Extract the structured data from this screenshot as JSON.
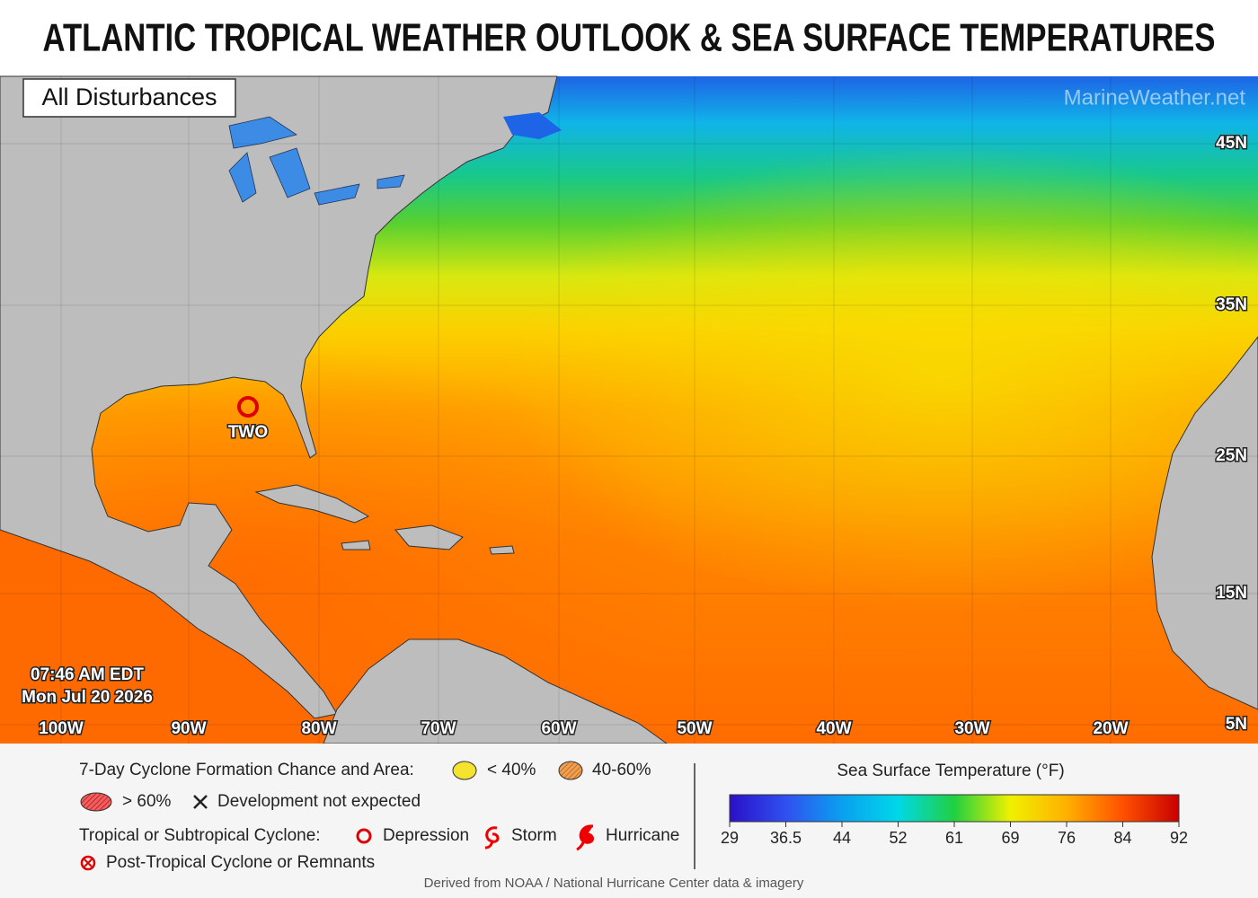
{
  "header": {
    "title": "ATLANTIC TROPICAL WEATHER OUTLOOK & SEA SURFACE TEMPERATURES"
  },
  "map": {
    "badge": "All Disturbances",
    "watermark": "MarineWeather.net",
    "latitude_labels": [
      "45N",
      "35N",
      "25N",
      "15N",
      "5N"
    ],
    "longitude_labels": [
      "100W",
      "90W",
      "80W",
      "70W",
      "60W",
      "50W",
      "40W",
      "30W",
      "20W"
    ],
    "disturbances": [
      {
        "label": "TWO"
      }
    ],
    "timestamp": {
      "time": "07:46 AM EDT",
      "date": "Mon Jul 20 2026"
    }
  },
  "legend": {
    "formation_title": "7-Day Cyclone Formation Chance and Area:",
    "low": "< 40%",
    "medium": "40-60%",
    "high": "> 60%",
    "not_expected": "Development not expected",
    "cyclone_title": "Tropical or Subtropical Cyclone:",
    "depression": "Depression",
    "storm": "Storm",
    "hurricane": "Hurricane",
    "post_tropical": "Post-Tropical Cyclone or Remnants"
  },
  "colorbar": {
    "title": "Sea Surface Temperature (°F)",
    "ticks": [
      29,
      36.5,
      44,
      52,
      61,
      69,
      76,
      84,
      92
    ],
    "colors": [
      "#2a10c8",
      "#3050f0",
      "#0aa0f0",
      "#00d8e8",
      "#20d040",
      "#f0f000",
      "#ffb000",
      "#ff5000",
      "#c80000"
    ]
  },
  "footer": {
    "credit": "Derived from NOAA / National Hurricane Center data & imagery"
  }
}
